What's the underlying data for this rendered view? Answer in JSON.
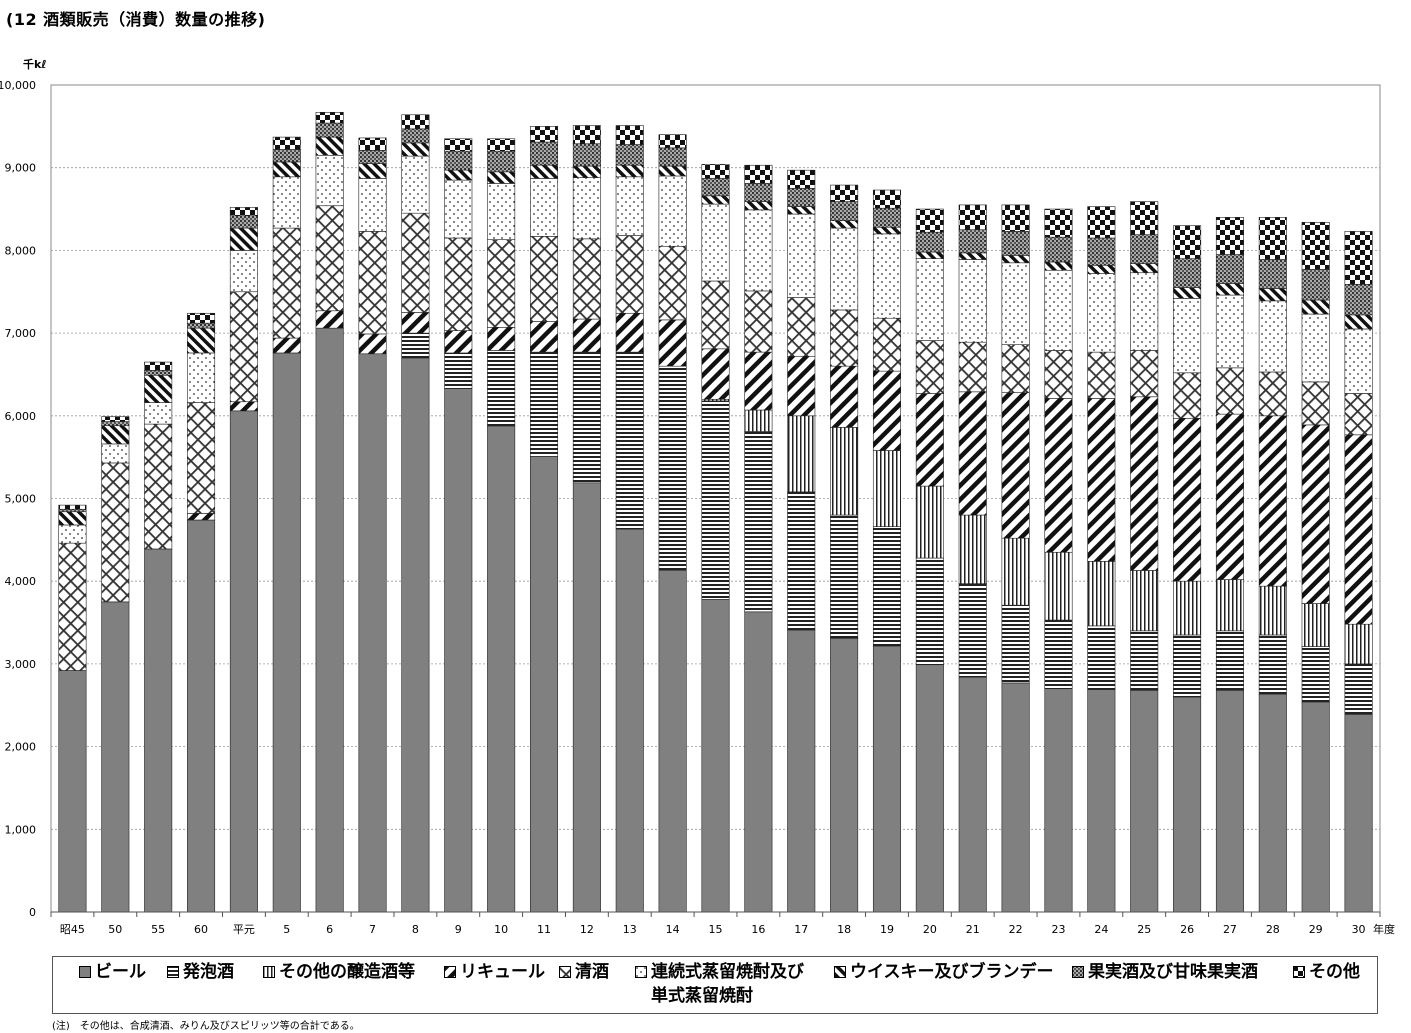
{
  "title": "(12 酒類販売（消費）数量の推移)",
  "unit_label": "千kℓ",
  "x_unit_label": "年度",
  "footnote": "(注)　その他は、合成清酒、みりん及びスピリッツ等の合計である。",
  "chart_data": {
    "type": "bar",
    "stacked": true,
    "ylim": [
      0,
      10000
    ],
    "y_ticks": [
      "0",
      "1,000",
      "2,000",
      "3,000",
      "4,000",
      "5,000",
      "6,000",
      "7,000",
      "8,000",
      "9,000",
      "10,000"
    ],
    "grid": true,
    "legend_position": "bottom",
    "categories": [
      "昭45",
      "50",
      "55",
      "60",
      "平元",
      "5",
      "6",
      "7",
      "8",
      "9",
      "10",
      "11",
      "12",
      "13",
      "14",
      "15",
      "16",
      "17",
      "18",
      "19",
      "20",
      "21",
      "22",
      "23",
      "24",
      "25",
      "26",
      "27",
      "28",
      "29",
      "30"
    ],
    "series": [
      {
        "name": "ビール",
        "values": [
          2920,
          3750,
          4390,
          4740,
          6060,
          6760,
          7060,
          6750,
          6700,
          6330,
          5870,
          5510,
          5190,
          4630,
          4130,
          3780,
          3630,
          3410,
          3310,
          3210,
          2990,
          2840,
          2770,
          2700,
          2690,
          2680,
          2600,
          2680,
          2630,
          2540,
          2390
        ]
      },
      {
        "name": "発泡酒",
        "values": [
          0,
          0,
          0,
          0,
          0,
          0,
          0,
          0,
          300,
          430,
          920,
          1260,
          1580,
          2140,
          2470,
          2400,
          2180,
          1670,
          1490,
          1450,
          1290,
          1130,
          940,
          830,
          770,
          720,
          750,
          720,
          720,
          670,
          610
        ]
      },
      {
        "name": "その他の醸造酒等",
        "values": [
          0,
          0,
          0,
          0,
          0,
          0,
          0,
          0,
          0,
          0,
          0,
          0,
          0,
          0,
          0,
          20,
          260,
          920,
          1060,
          920,
          870,
          830,
          810,
          820,
          780,
          730,
          650,
          620,
          590,
          520,
          480
        ]
      },
      {
        "name": "リキュール",
        "values": [
          0,
          0,
          0,
          80,
          110,
          180,
          210,
          240,
          250,
          270,
          280,
          370,
          400,
          470,
          560,
          610,
          700,
          720,
          740,
          960,
          1120,
          1490,
          1760,
          1860,
          1970,
          2100,
          1970,
          2000,
          2060,
          2160,
          2290
        ]
      },
      {
        "name": "清酒",
        "values": [
          1540,
          1680,
          1510,
          1340,
          1330,
          1330,
          1270,
          1240,
          1200,
          1120,
          1060,
          1030,
          970,
          940,
          890,
          820,
          740,
          710,
          680,
          640,
          640,
          600,
          580,
          580,
          560,
          560,
          550,
          560,
          530,
          520,
          500
        ]
      },
      {
        "name": "連続式蒸留焼酎及び単式蒸留焼酎",
        "values": [
          220,
          230,
          260,
          600,
          500,
          620,
          610,
          640,
          690,
          700,
          680,
          700,
          740,
          710,
          850,
          930,
          980,
          1010,
          990,
          1020,
          990,
          1000,
          990,
          970,
          950,
          940,
          900,
          880,
          860,
          820,
          780
        ]
      },
      {
        "name": "ウイスキー及びブランデー",
        "values": [
          160,
          220,
          330,
          300,
          270,
          180,
          220,
          180,
          160,
          120,
          140,
          160,
          140,
          140,
          120,
          100,
          100,
          90,
          90,
          80,
          80,
          80,
          90,
          100,
          100,
          110,
          130,
          140,
          150,
          170,
          170
        ]
      },
      {
        "name": "果実酒及び甘味果実酒",
        "values": [
          30,
          50,
          60,
          60,
          150,
          150,
          170,
          160,
          170,
          230,
          250,
          280,
          270,
          250,
          220,
          210,
          220,
          220,
          230,
          230,
          240,
          280,
          290,
          300,
          330,
          350,
          350,
          350,
          350,
          370,
          370
        ]
      },
      {
        "name": "その他",
        "values": [
          50,
          60,
          100,
          120,
          100,
          150,
          130,
          150,
          170,
          150,
          150,
          190,
          220,
          230,
          160,
          170,
          220,
          220,
          200,
          220,
          280,
          300,
          320,
          340,
          380,
          400,
          400,
          450,
          510,
          570,
          640
        ]
      }
    ]
  },
  "legend": {
    "entries": [
      {
        "label": "ビール",
        "icon": "solid-gray-swatch-icon"
      },
      {
        "label": "発泡酒",
        "icon": "horizontal-lines-swatch-icon"
      },
      {
        "label": "その他の醸造酒等",
        "icon": "vertical-lines-swatch-icon"
      },
      {
        "label": "リキュール",
        "icon": "diagonal-lines-swatch-icon"
      },
      {
        "label": "清酒",
        "icon": "crosshatch-swatch-icon"
      },
      {
        "label": "連続式蒸留焼酎及び",
        "label_line2": "単式蒸留焼酎",
        "icon": "dots-swatch-icon"
      },
      {
        "label": "ウイスキー及びブランデー",
        "icon": "back-diagonal-swatch-icon"
      },
      {
        "label": "果実酒及び甘味果実酒",
        "icon": "fine-grid-swatch-icon"
      },
      {
        "label": "その他",
        "icon": "checker-swatch-icon"
      }
    ]
  }
}
